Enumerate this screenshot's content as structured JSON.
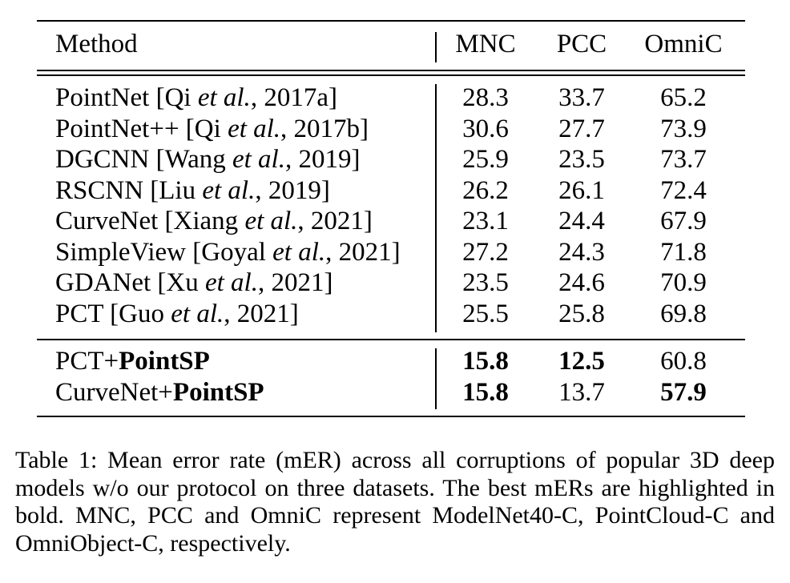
{
  "table": {
    "headers": {
      "method": "Method",
      "mnc": "MNC",
      "pcc": "PCC",
      "omnic": "OmniC"
    },
    "baselines": [
      {
        "method_pre": "PointNet [Qi ",
        "method_it": "et al.",
        "method_post": ", 2017a]",
        "mnc": "28.3",
        "pcc": "33.7",
        "omnic": "65.2"
      },
      {
        "method_pre": "PointNet++ [Qi ",
        "method_it": "et al.",
        "method_post": ", 2017b]",
        "mnc": "30.6",
        "pcc": "27.7",
        "omnic": "73.9"
      },
      {
        "method_pre": "DGCNN [Wang ",
        "method_it": "et al.",
        "method_post": ", 2019]",
        "mnc": "25.9",
        "pcc": "23.5",
        "omnic": "73.7"
      },
      {
        "method_pre": "RSCNN [Liu ",
        "method_it": "et al.",
        "method_post": ", 2019]",
        "mnc": "26.2",
        "pcc": "26.1",
        "omnic": "72.4"
      },
      {
        "method_pre": "CurveNet [Xiang ",
        "method_it": "et al.",
        "method_post": ", 2021]",
        "mnc": "23.1",
        "pcc": "24.4",
        "omnic": "67.9"
      },
      {
        "method_pre": "SimpleView [Goyal ",
        "method_it": "et al.",
        "method_post": ", 2021]",
        "mnc": "27.2",
        "pcc": "24.3",
        "omnic": "71.8"
      },
      {
        "method_pre": "GDANet [Xu ",
        "method_it": "et al.",
        "method_post": ", 2021]",
        "mnc": "23.5",
        "pcc": "24.6",
        "omnic": "70.9"
      },
      {
        "method_pre": "PCT [Guo ",
        "method_it": "et al.",
        "method_post": ", 2021]",
        "mnc": "25.5",
        "pcc": "25.8",
        "omnic": "69.8"
      }
    ],
    "ours": [
      {
        "method_pre": "PCT+",
        "method_bold": "PointSP",
        "mnc": "15.8",
        "mnc_bold": true,
        "pcc": "12.5",
        "pcc_bold": true,
        "omnic": "60.8",
        "omnic_bold": false
      },
      {
        "method_pre": "CurveNet+",
        "method_bold": "PointSP",
        "mnc": "15.8",
        "mnc_bold": true,
        "pcc": "13.7",
        "pcc_bold": false,
        "omnic": "57.9",
        "omnic_bold": true
      }
    ]
  },
  "caption": "Table 1: Mean error rate (mER) across all corruptions of popular 3D deep models w/o our protocol on three datasets. The best mERs are highlighted in bold. MNC, PCC and OmniC represent ModelNet40-C, PointCloud-C and OmniObject-C, respectively."
}
